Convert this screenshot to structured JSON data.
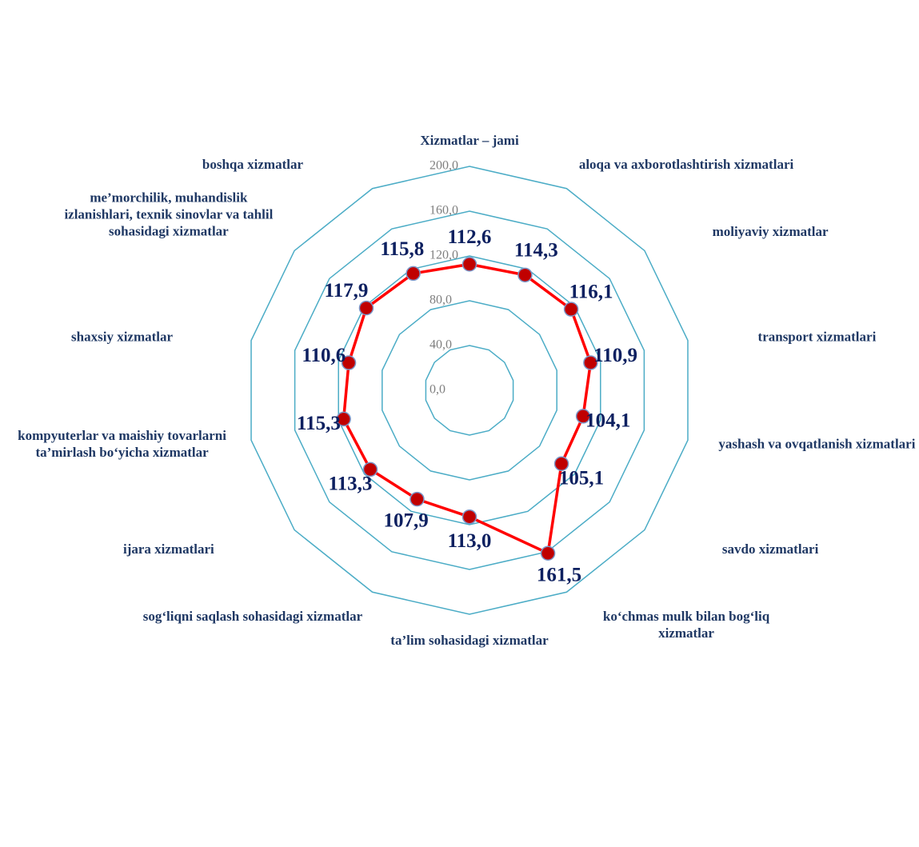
{
  "chart_data": {
    "type": "radar",
    "categories": [
      "Xizmatlar – jami",
      "aloqa va axborotlashtirish xizmatlari",
      "moliyaviy xizmatlar",
      "transport xizmatlari",
      "yashash va ovqatlanish xizmatlari",
      "savdo xizmatlari",
      "ko‘chmas mulk bilan bog‘liq xizmatlar",
      "ta’lim sohasidagi xizmatlar",
      "sog‘liqni saqlash sohasidagi xizmatlar",
      "ijara xizmatlari",
      "kompyuterlar va maishiy tovarlarni ta’mirlash bo‘yicha xizmatlar",
      "shaxsiy xizmatlar",
      "me’morchilik, muhandislik izlanishlari, texnik sinovlar va tahlil sohasidagi xizmatlar",
      "boshqa xizmatlar"
    ],
    "values": [
      112.6,
      114.3,
      116.1,
      110.9,
      104.1,
      105.1,
      161.5,
      113.0,
      107.9,
      113.3,
      115.3,
      110.6,
      117.9,
      115.8
    ],
    "value_labels": [
      "112,6",
      "114,3",
      "116,1",
      "110,9",
      "104,1",
      "105,1",
      "161,5",
      "113,0",
      "107,9",
      "113,3",
      "115,3",
      "110,6",
      "117,9",
      "115,8"
    ],
    "color": "#ff0000",
    "marker_color": "#c00000",
    "grid_color": "#4bacc6",
    "ylim": [
      0,
      200
    ],
    "yticks": [
      {
        "value": 0,
        "label": "0,0"
      },
      {
        "value": 40,
        "label": "40,0"
      },
      {
        "value": 80,
        "label": "80,0"
      },
      {
        "value": 120,
        "label": "120,0"
      },
      {
        "value": 160,
        "label": "160,0"
      },
      {
        "value": 200,
        "label": "200,0"
      }
    ],
    "grid": true
  }
}
